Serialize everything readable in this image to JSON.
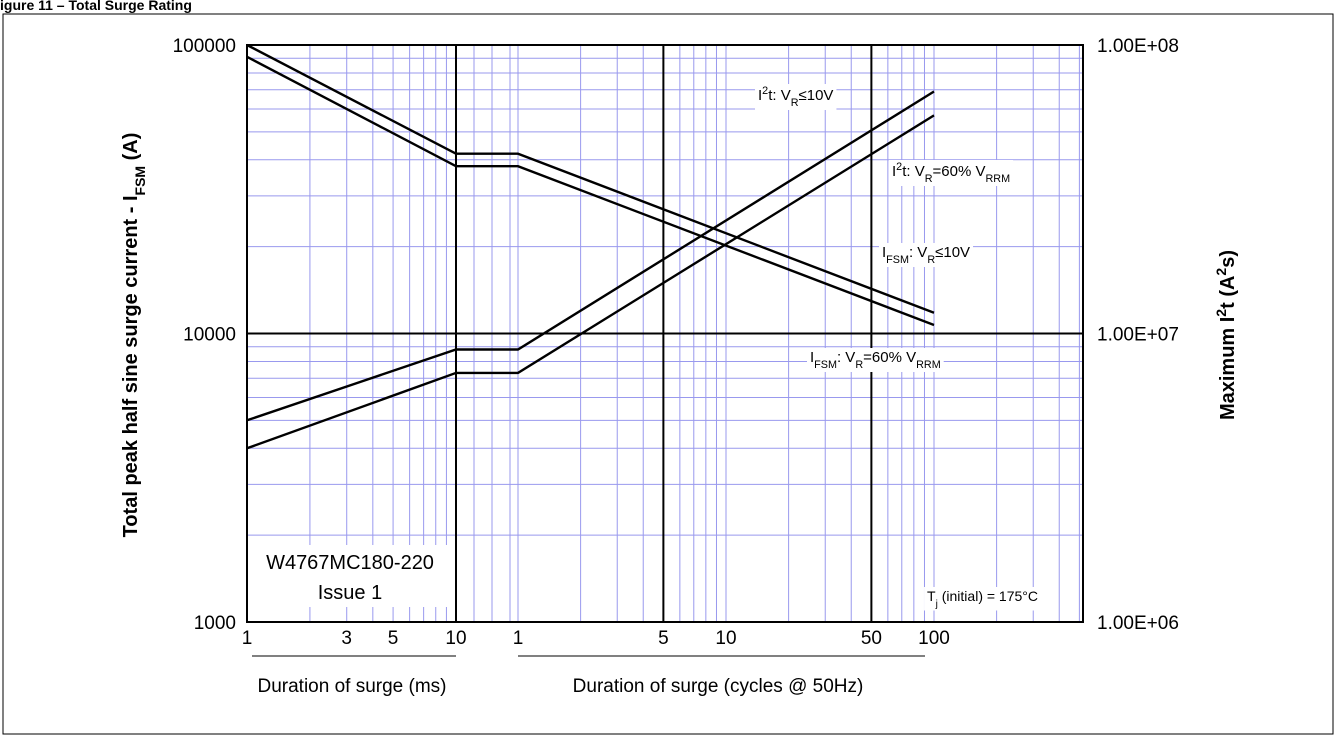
{
  "chart_data": {
    "type": "line",
    "title_fragment": "igure 11 – Total Surge Rating",
    "y_left": {
      "label_parts": [
        "Total peak half sine surge current - I",
        "FSM",
        " (A)"
      ],
      "scale": "log",
      "range": [
        1000,
        100000
      ],
      "ticks": [
        "1000",
        "10000",
        "100000"
      ]
    },
    "y_right": {
      "label_parts": [
        "Maximum I",
        "2",
        "t (A",
        "2",
        "s)"
      ],
      "scale": "log",
      "range": [
        1000000,
        100000000
      ],
      "ticks": [
        "1.00E+06",
        "1.00E+07",
        "1.00E+08"
      ]
    },
    "x_ms": {
      "label": "Duration of surge (ms)",
      "scale": "log",
      "range": [
        1,
        10
      ],
      "ticks": [
        "1",
        "3",
        "5",
        "10"
      ]
    },
    "x_cycles": {
      "label": "Duration of surge (cycles @ 50Hz)",
      "scale": "log",
      "range": [
        1,
        100
      ],
      "ticks": [
        "1",
        "5",
        "10",
        "50",
        "100"
      ]
    },
    "grid": true,
    "series": [
      {
        "name": "I2t: VR≤10V",
        "axis": "right",
        "points": [
          {
            "x": "1 ms",
            "y": 5000000
          },
          {
            "x": "10 ms",
            "y": 8800000
          },
          {
            "x": "1 cycle",
            "y": 8800000
          },
          {
            "x": "100 cycles",
            "y": 69000000
          }
        ]
      },
      {
        "name": "I2t: VR=60% VRRM",
        "axis": "right",
        "points": [
          {
            "x": "1 ms",
            "y": 4000000
          },
          {
            "x": "10 ms",
            "y": 7300000
          },
          {
            "x": "1 cycle",
            "y": 7300000
          },
          {
            "x": "100 cycles",
            "y": 57000000
          }
        ]
      },
      {
        "name": "IFSM: VR≤10V",
        "axis": "left",
        "points": [
          {
            "x": "1 ms",
            "y": 100000
          },
          {
            "x": "10 ms",
            "y": 42000
          },
          {
            "x": "1 cycle",
            "y": 42000
          },
          {
            "x": "100 cycles",
            "y": 11800
          }
        ]
      },
      {
        "name": "IFSM: VR=60% VRRM",
        "axis": "left",
        "points": [
          {
            "x": "1 ms",
            "y": 91000
          },
          {
            "x": "10 ms",
            "y": 38000
          },
          {
            "x": "1 cycle",
            "y": 38000
          },
          {
            "x": "100 cycles",
            "y": 10700
          }
        ]
      }
    ],
    "series_labels": [
      {
        "parts": [
          [
            "I",
            ""
          ],
          [
            "2",
            "sup"
          ],
          [
            "t: V",
            ""
          ],
          [
            "R",
            "sub"
          ],
          [
            "≤10V",
            ""
          ]
        ]
      },
      {
        "parts": [
          [
            "I",
            ""
          ],
          [
            "2",
            "sup"
          ],
          [
            "t: V",
            ""
          ],
          [
            "R",
            "sub"
          ],
          [
            "=60% V",
            ""
          ],
          [
            "RRM",
            "sub"
          ]
        ]
      },
      {
        "parts": [
          [
            "I",
            ""
          ],
          [
            "FSM",
            "sub"
          ],
          [
            ": V",
            ""
          ],
          [
            "R",
            "sub"
          ],
          [
            "≤10V",
            ""
          ]
        ]
      },
      {
        "parts": [
          [
            "I",
            ""
          ],
          [
            "FSM",
            "sub"
          ],
          [
            ": V",
            ""
          ],
          [
            "R",
            "sub"
          ],
          [
            "=60% V",
            ""
          ],
          [
            "RRM",
            "sub"
          ]
        ]
      }
    ],
    "annotations": {
      "part_number": "W4767MC180-220",
      "issue": "Issue 1",
      "condition_parts": [
        [
          "T",
          ""
        ],
        [
          "j",
          "sub"
        ],
        [
          " (initial) = 175°C",
          ""
        ]
      ]
    }
  }
}
